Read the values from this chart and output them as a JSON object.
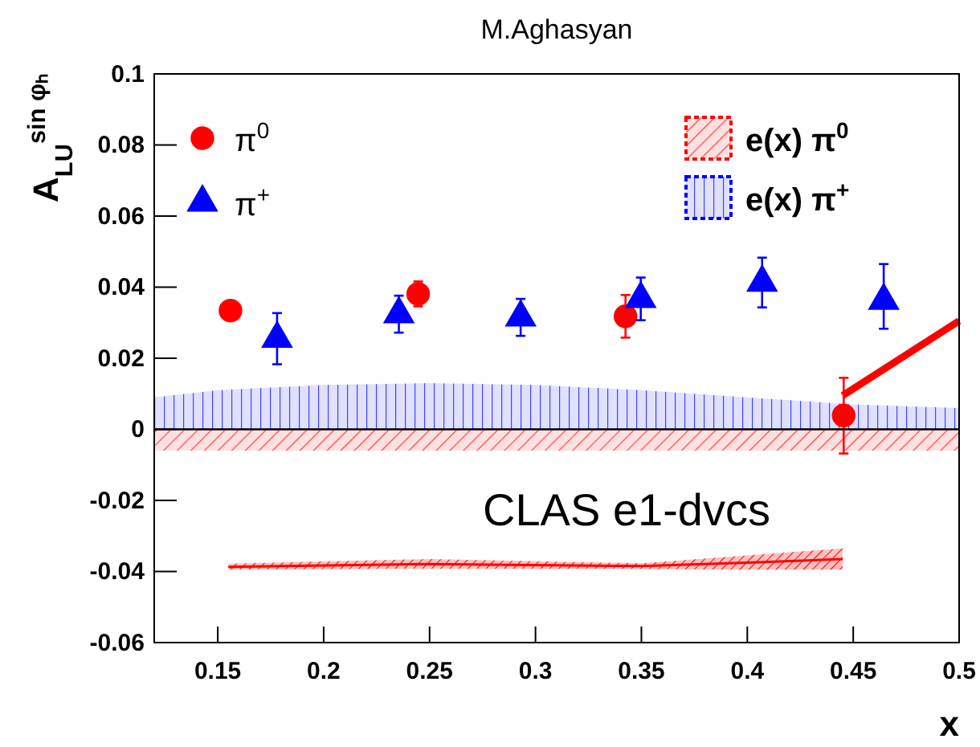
{
  "chart_data": {
    "type": "scatter",
    "title": "M.Aghasyan",
    "xlabel": "x",
    "ylabel": "A$_{LU}$$^{sin φₕ}$",
    "xlim": [
      0.12,
      0.5
    ],
    "ylim": [
      -0.06,
      0.1
    ],
    "xticks": [
      0.15,
      0.2,
      0.25,
      0.3,
      0.35,
      0.4,
      0.45,
      0.5
    ],
    "yticks": [
      -0.06,
      -0.04,
      -0.02,
      0,
      0.02,
      0.04,
      0.06,
      0.08,
      0.1
    ],
    "legend": "top",
    "grid": false,
    "ref_lines": [
      {
        "axis": "y",
        "value": 0
      }
    ],
    "annotations": [
      "CLAS e1-dvcs"
    ],
    "series": [
      {
        "name": "π$^{0}$",
        "marker": "circle",
        "color": "#ff0000",
        "x": [
          0.156,
          0.2446,
          0.3425,
          0.4455
        ],
        "values": [
          0.0334,
          0.0381,
          0.0318,
          0.0039
        ],
        "errors": [
          0.002,
          0.0035,
          0.006,
          [
            -0.0068,
            0.0145
          ]
        ]
      },
      {
        "name": "π$^{+}$",
        "marker": "triangle",
        "color": "#0000ff",
        "x": [
          0.178,
          0.2355,
          0.293,
          0.3497,
          0.407,
          0.4644
        ],
        "values": [
          0.0255,
          0.0324,
          0.0315,
          0.0367,
          0.0413,
          0.0362
        ],
        "errors": [
          0.0072,
          0.0052,
          0.0052,
          0.006,
          0.007,
          [
            0.0283,
            0.0465
          ]
        ]
      },
      {
        "name": "e(x) π$^{0}$",
        "type": "area",
        "color": "#ff0000",
        "x": [
          0.12,
          0.2,
          0.3,
          0.4,
          0.5
        ],
        "values": [
          -0.006,
          -0.006,
          -0.006,
          -0.006,
          -0.006
        ]
      },
      {
        "name": "e(x) π$^{+}$",
        "type": "area",
        "color": "#0000ff",
        "x": [
          0.12,
          0.15,
          0.2,
          0.25,
          0.3,
          0.35,
          0.4,
          0.45,
          0.5
        ],
        "values": [
          0.009,
          0.011,
          0.0125,
          0.013,
          0.0125,
          0.011,
          0.009,
          0.007,
          0.006
        ]
      },
      {
        "type": "line",
        "color": "#ff0000",
        "x": [
          0.445,
          0.5
        ],
        "values": [
          0.0095,
          0.0305
        ]
      },
      {
        "type": "line",
        "color": "#ff0000",
        "x": [
          0.155,
          0.25,
          0.35,
          0.4,
          0.445
        ],
        "values": [
          -0.0387,
          -0.0379,
          -0.0385,
          -0.0375,
          -0.0365
        ],
        "lower": [
          -0.0395,
          -0.0392,
          -0.0393,
          -0.0395,
          -0.0395
        ],
        "upper": [
          -0.0378,
          -0.0365,
          -0.0377,
          -0.0355,
          -0.0335
        ]
      }
    ]
  }
}
